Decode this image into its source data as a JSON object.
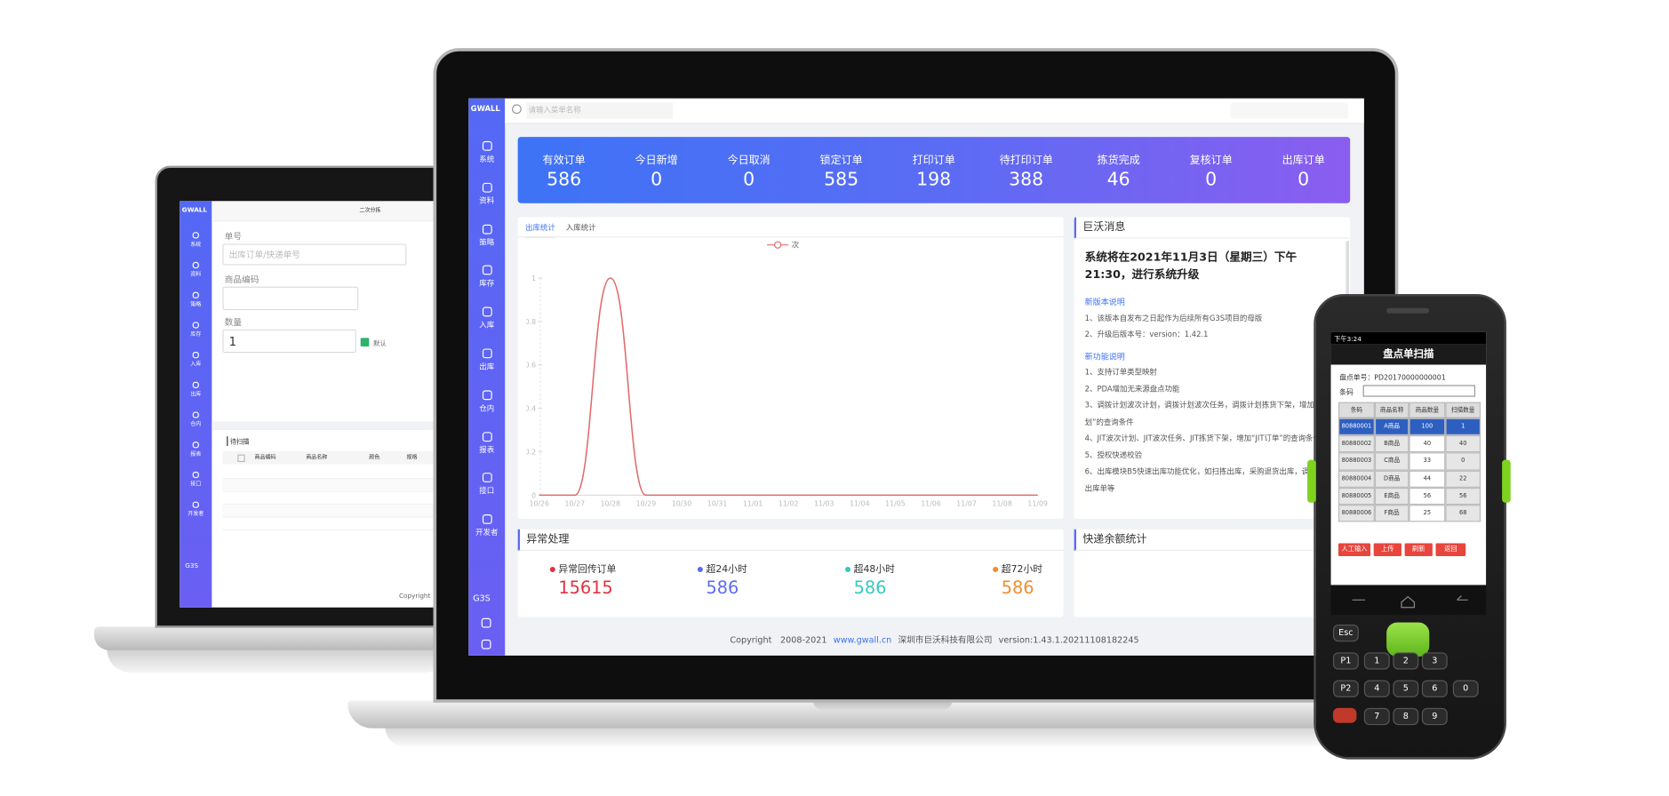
{
  "back_laptop": {
    "logo": "GWALL",
    "sidebar": [
      "系统",
      "资料",
      "策略",
      "库存",
      "入库",
      "出库",
      "仓内",
      "报表",
      "接口",
      "开发者"
    ],
    "version": "G3S",
    "tab": "二次分拣",
    "order_label": "单号",
    "order_placeholder": "出库订单/快递单号",
    "code_label": "商品编码",
    "qty_label": "数量",
    "qty_value": "1",
    "checkbox_label": "默认",
    "table_title": "待扫描",
    "table_headers": [
      "商品编码",
      "商品名称",
      "颜色",
      "规格"
    ],
    "footer": "Copyright"
  },
  "main_laptop": {
    "logo": "GWALL",
    "search_placeholder": "请输入菜单名称",
    "sidebar": [
      "系统",
      "资料",
      "策略",
      "库存",
      "入库",
      "出库",
      "仓内",
      "报表",
      "接口",
      "开发者"
    ],
    "version": "G3S",
    "stats": [
      {
        "label": "有效订单",
        "value": 586
      },
      {
        "label": "今日新增",
        "value": 0
      },
      {
        "label": "今日取消",
        "value": 0
      },
      {
        "label": "锁定订单",
        "value": 585
      },
      {
        "label": "打印订单",
        "value": 198
      },
      {
        "label": "待打印订单",
        "value": 388
      },
      {
        "label": "拣货完成",
        "value": 46
      },
      {
        "label": "复核订单",
        "value": 0
      },
      {
        "label": "出库订单",
        "value": 0
      }
    ],
    "chart_tabs": [
      "出库统计",
      "入库统计"
    ],
    "chart": {
      "type": "line",
      "categories": [
        "10/26",
        "10/27",
        "10/28",
        "10/29",
        "10/30",
        "10/31",
        "11/01",
        "11/02",
        "11/03",
        "11/04",
        "11/05",
        "11/06",
        "11/07",
        "11/08",
        "11/09"
      ],
      "series": [
        {
          "name": "次",
          "color": "#e06c6c",
          "values": [
            0,
            0,
            1,
            0,
            0,
            0,
            0,
            0,
            0,
            0,
            0,
            0,
            0,
            0,
            0
          ]
        }
      ],
      "ylim": [
        0,
        1
      ],
      "yticks": [
        0,
        0.2,
        0.4,
        0.6,
        0.8,
        1
      ]
    },
    "notice": {
      "title": "巨沃消息",
      "headline": "系统将在2021年11月3日（星期三）下午21:30，进行系统升级",
      "sections": [
        {
          "heading": "新版本说明",
          "items": [
            "1、该版本自发布之日起作为后续所有G3S项目的母版",
            "2、升级后版本号：version：1.42.1"
          ]
        },
        {
          "heading": "新功能说明",
          "items": [
            "1、支持订单类型映射",
            "2、PDA增加无来源盘点功能",
            "3、调拨计划波次计划，调拨计划波次任务，调拨计划拣货下架，增加“调拨计划”的查询条件",
            "4、JIT波次计划、JIT波次任务、JIT拣货下架，增加“JIT订单”的查询条件",
            "5、授权快递校验",
            "6、出库模块B5快速出库功能优化，如扫拣出库，采购退货出库，调拨出库，出库单等"
          ]
        }
      ]
    },
    "exceptions": {
      "title": "异常处理",
      "items": [
        {
          "label": "异常回传订单",
          "value": 15615,
          "color": "#e0313f"
        },
        {
          "label": "超24小时",
          "value": 586,
          "color": "#5b6cf0"
        },
        {
          "label": "超48小时",
          "value": 586,
          "color": "#34c9c0"
        },
        {
          "label": "超72小时",
          "value": 586,
          "color": "#f08c2e"
        }
      ]
    },
    "express_title": "快递余额统计",
    "footer": {
      "copyright": "Copyright　2008-2021",
      "site": "www.gwall.cn",
      "company": "深圳市巨沃科技有限公司",
      "version": "version:1.43.1.20211108182245"
    }
  },
  "handheld": {
    "time": "下午3:24",
    "title": "盘点单扫描",
    "order": "盘点单号：PD20170000000001",
    "barcode_label": "条码",
    "headers": [
      "条码",
      "商品名称",
      "商品数量",
      "扫描数量"
    ],
    "rows": [
      [
        "80880001",
        "A商品",
        "100",
        "1"
      ],
      [
        "80880002",
        "B商品",
        "40",
        "40"
      ],
      [
        "80880003",
        "C商品",
        "33",
        "0"
      ],
      [
        "80880004",
        "D商品",
        "44",
        "22"
      ],
      [
        "80880005",
        "E商品",
        "56",
        "56"
      ],
      [
        "80880006",
        "F商品",
        "25",
        "68"
      ]
    ],
    "buttons": [
      "人工输入",
      "上传",
      "刷新",
      "返回"
    ],
    "keys": [
      [
        "Esc"
      ],
      [
        "P1",
        "1",
        "2",
        "3"
      ],
      [
        "P2",
        "4",
        "5",
        "6",
        "0"
      ],
      [
        "7",
        "8",
        "9"
      ]
    ]
  }
}
